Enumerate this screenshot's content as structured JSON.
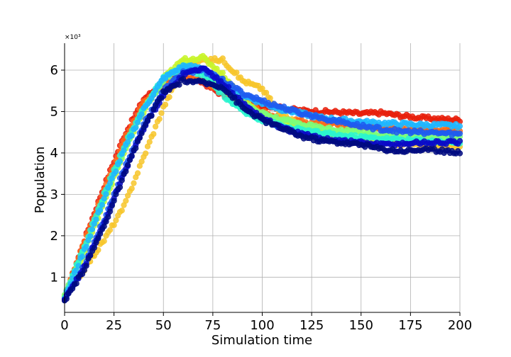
{
  "chart_data": {
    "type": "scatter",
    "title": "",
    "xlabel": "Simulation time",
    "ylabel": "Population",
    "y_offset_label": "×10³",
    "xlim": [
      0,
      200
    ],
    "ylim": [
      0.15,
      6.65
    ],
    "y_scale_note": "values in thousands",
    "x_ticks": [
      0,
      25,
      50,
      75,
      100,
      125,
      150,
      175,
      200
    ],
    "x_tick_labels": [
      "0",
      "25",
      "50",
      "75",
      "100",
      "125",
      "150",
      "175",
      "200"
    ],
    "y_ticks": [
      1,
      2,
      3,
      4,
      5,
      6
    ],
    "y_tick_labels": [
      "1",
      "2",
      "3",
      "4",
      "5",
      "6"
    ],
    "grid": true,
    "legend": "none",
    "x": [
      0,
      10,
      20,
      30,
      40,
      50,
      60,
      70,
      80,
      90,
      100,
      110,
      120,
      130,
      140,
      150,
      160,
      170,
      180,
      190,
      200
    ],
    "series": [
      {
        "color": "#e8200c",
        "values": [
          0.5,
          1.9,
          3.2,
          4.4,
          5.3,
          5.7,
          5.85,
          5.7,
          5.4,
          5.25,
          5.15,
          5.08,
          5.02,
          5.0,
          4.98,
          4.95,
          4.97,
          4.9,
          4.85,
          4.82,
          4.8
        ]
      },
      {
        "color": "#ff6a1a",
        "values": [
          0.55,
          1.85,
          3.1,
          4.3,
          5.2,
          5.65,
          5.85,
          5.75,
          5.5,
          5.2,
          5.0,
          4.85,
          4.75,
          4.7,
          4.68,
          4.62,
          4.6,
          4.58,
          4.57,
          4.56,
          4.55
        ]
      },
      {
        "color": "#f7c62a",
        "values": [
          0.5,
          1.2,
          1.9,
          2.7,
          3.9,
          5.1,
          6.05,
          6.25,
          6.25,
          5.75,
          5.55,
          4.9,
          4.65,
          4.5,
          4.4,
          4.3,
          4.25,
          4.22,
          4.2,
          4.18,
          4.15
        ]
      },
      {
        "color": "#c8f52a",
        "values": [
          0.55,
          1.6,
          2.8,
          4.0,
          5.0,
          5.8,
          6.25,
          6.3,
          5.9,
          5.3,
          4.9,
          4.7,
          4.5,
          4.45,
          4.4,
          4.35,
          4.33,
          4.3,
          4.28,
          4.26,
          4.25
        ]
      },
      {
        "color": "#7cff79",
        "values": [
          0.55,
          1.7,
          2.9,
          4.05,
          5.05,
          5.75,
          6.1,
          6.0,
          5.6,
          5.2,
          4.95,
          4.8,
          4.7,
          4.6,
          4.55,
          4.5,
          4.45,
          4.42,
          4.4,
          4.38,
          4.35
        ]
      },
      {
        "color": "#2af5d0",
        "values": [
          0.55,
          1.75,
          3.0,
          4.15,
          5.1,
          5.8,
          6.05,
          5.9,
          5.4,
          5.0,
          4.8,
          4.65,
          4.55,
          4.48,
          4.42,
          4.38,
          4.35,
          4.32,
          4.3,
          4.28,
          4.25
        ]
      },
      {
        "color": "#1fb6ff",
        "values": [
          0.5,
          1.65,
          2.9,
          4.05,
          5.05,
          5.8,
          6.1,
          6.05,
          5.7,
          5.4,
          5.2,
          5.05,
          4.95,
          4.85,
          4.8,
          4.75,
          4.72,
          4.7,
          4.68,
          4.67,
          4.65
        ]
      },
      {
        "color": "#1e5cf0",
        "values": [
          0.45,
          1.3,
          2.4,
          3.6,
          4.7,
          5.5,
          5.95,
          6.0,
          5.75,
          5.45,
          5.25,
          5.1,
          4.95,
          4.85,
          4.75,
          4.65,
          4.58,
          4.52,
          4.5,
          4.48,
          4.45
        ]
      },
      {
        "color": "#0a0ac8",
        "values": [
          0.45,
          1.25,
          2.3,
          3.5,
          4.6,
          5.4,
          5.9,
          6.05,
          5.7,
          5.2,
          4.85,
          4.6,
          4.45,
          4.35,
          4.3,
          4.25,
          4.2,
          4.22,
          4.25,
          4.25,
          4.25
        ]
      },
      {
        "color": "#000a80",
        "values": [
          0.4,
          1.2,
          2.25,
          3.45,
          4.6,
          5.45,
          5.75,
          5.7,
          5.6,
          5.1,
          4.8,
          4.6,
          4.4,
          4.3,
          4.25,
          4.2,
          4.1,
          4.05,
          4.08,
          4.05,
          4.02
        ]
      }
    ]
  }
}
